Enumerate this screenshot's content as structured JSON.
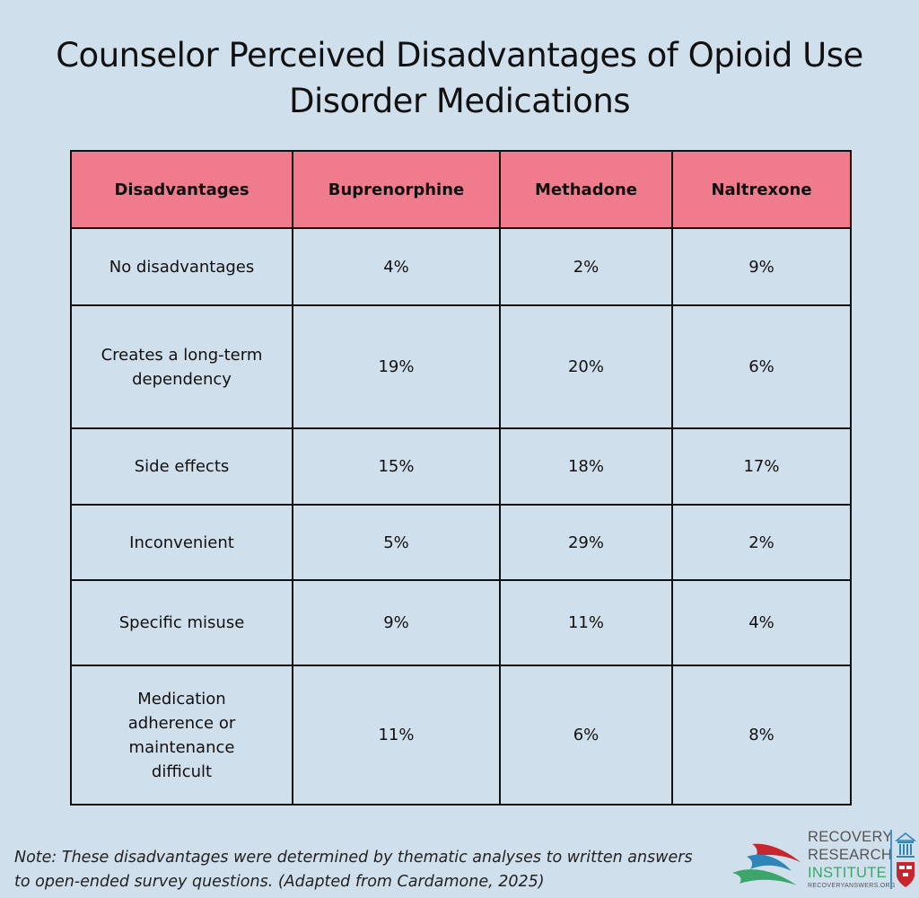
{
  "title_line1": "Counselor Perceived Disadvantages of Opioid Use",
  "title_line2": "Disorder Medications",
  "chart_data": {
    "type": "table",
    "title": "Counselor Perceived Disadvantages of Opioid Use Disorder Medications",
    "columns": [
      "Disadvantages",
      "Buprenorphine",
      "Methadone",
      "Naltrexone"
    ],
    "rows": [
      {
        "label": "No disadvantages",
        "values": [
          "4%",
          "2%",
          "9%"
        ]
      },
      {
        "label": "Creates a long-term dependency",
        "values": [
          "19%",
          "20%",
          "6%"
        ]
      },
      {
        "label": "Side effects",
        "values": [
          "15%",
          "18%",
          "17%"
        ]
      },
      {
        "label": "Inconvenient",
        "values": [
          "5%",
          "29%",
          "2%"
        ]
      },
      {
        "label": "Specific misuse",
        "values": [
          "9%",
          "11%",
          "4%"
        ]
      },
      {
        "label": "Medication adherence or maintenance difficult",
        "values": [
          "11%",
          "6%",
          "8%"
        ]
      }
    ],
    "header_color": "#ef7b8c"
  },
  "note_line1": "Note: These disadvantages were determined  by thematic analyses to written answers",
  "note_line2": "to open-ended survey questions. (Adapted from Cardamone, 2025)",
  "logo": {
    "line1": "RECOVERY",
    "line2": "RESEARCH",
    "line3": "INSTITUTE",
    "url": "RECOVERYANSWERS.ORG"
  },
  "colors": {
    "background": "#cfdfeb",
    "header": "#ef7b8c",
    "logo_green": "#3ca66a",
    "logo_blue": "#2e86b8",
    "logo_red": "#c6262e"
  }
}
